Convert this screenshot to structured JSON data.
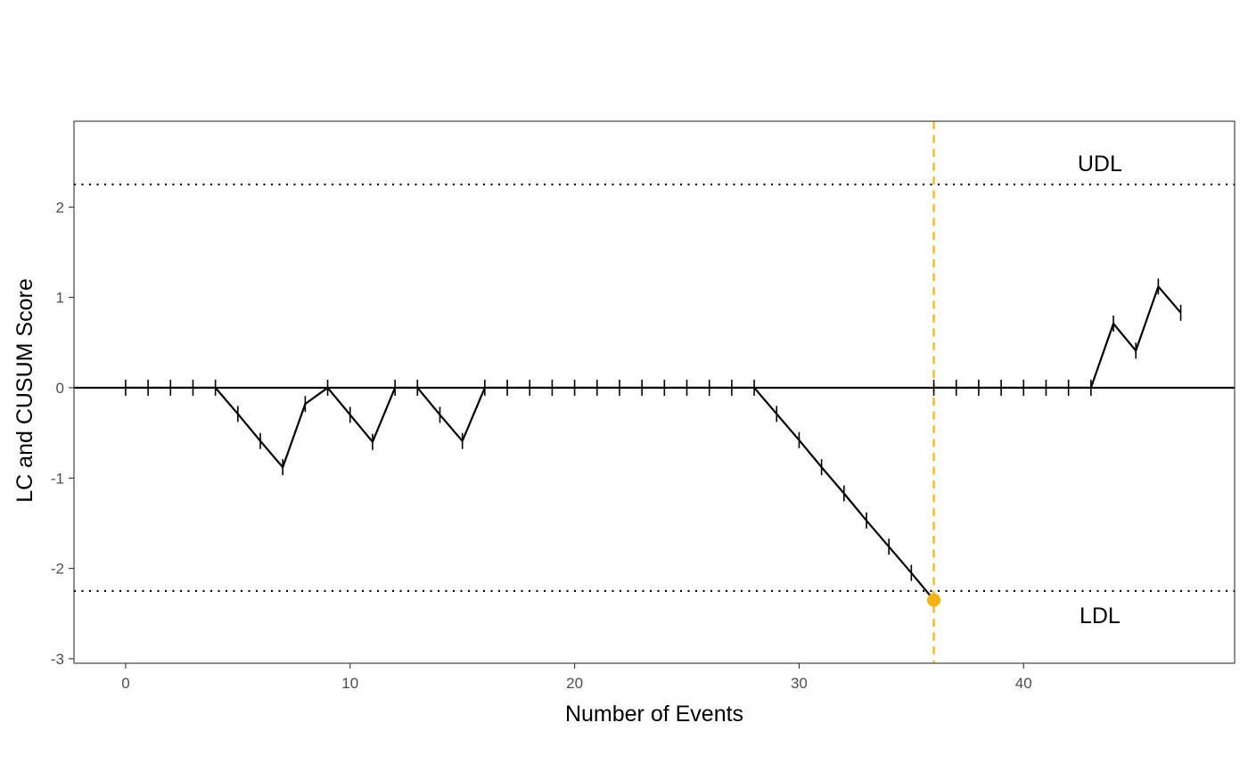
{
  "chart_data": {
    "type": "line",
    "title": "",
    "xlabel": "Number of Events",
    "ylabel": "LC and CUSUM Score",
    "xlim": [
      -2.3,
      49.4
    ],
    "ylim": [
      -3.05,
      2.95
    ],
    "x_ticks": [
      0,
      10,
      20,
      30,
      40
    ],
    "y_ticks": [
      -3,
      -2,
      -1,
      0,
      1,
      2
    ],
    "grid": false,
    "colors": {
      "line": "#000000",
      "signal": "#F5B311",
      "axis_text": "#4d4d4d",
      "frame": "#333333"
    },
    "zero_line": 0,
    "upper_limit": {
      "label": "UDL",
      "value": 2.25
    },
    "lower_limit": {
      "label": "LDL",
      "value": -2.25
    },
    "signal": {
      "x": 36,
      "y": -2.35
    },
    "series": [
      {
        "x": [
          0,
          1,
          2,
          3,
          4,
          5,
          6,
          7,
          8,
          9,
          10,
          11,
          12,
          13,
          14,
          15,
          16,
          17,
          18,
          19,
          20,
          21,
          22,
          23,
          24,
          25,
          26,
          27,
          28,
          29,
          30,
          31,
          32,
          33,
          34,
          35,
          36
        ],
        "y": [
          0,
          0,
          0,
          0,
          0,
          -0.29,
          -0.59,
          -0.88,
          -0.18,
          0,
          -0.3,
          -0.6,
          0,
          0,
          -0.3,
          -0.59,
          0,
          0,
          0,
          0,
          0,
          0,
          0,
          0,
          0,
          0,
          0,
          0,
          0,
          -0.29,
          -0.58,
          -0.88,
          -1.17,
          -1.47,
          -1.76,
          -2.05,
          -2.35
        ]
      },
      {
        "x": [
          36,
          37,
          38,
          39,
          40,
          41,
          42,
          43,
          44,
          45,
          46,
          47
        ],
        "y": [
          0,
          0,
          0,
          0,
          0,
          0,
          0,
          0,
          0.71,
          0.41,
          1.12,
          0.83
        ]
      }
    ]
  }
}
